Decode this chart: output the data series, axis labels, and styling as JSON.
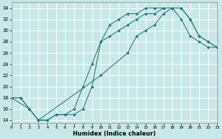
{
  "xlabel": "Humidex (Indice chaleur)",
  "bg_color": "#c8e8e8",
  "grid_color": "#ffffff",
  "line_color": "#2a7a7a",
  "xlim": [
    0,
    23
  ],
  "ylim": [
    13.5,
    35
  ],
  "xticks": [
    0,
    1,
    2,
    3,
    4,
    5,
    6,
    7,
    8,
    9,
    10,
    11,
    12,
    13,
    14,
    15,
    16,
    17,
    18,
    19,
    20,
    21,
    22,
    23
  ],
  "yticks": [
    14,
    16,
    18,
    20,
    22,
    24,
    26,
    28,
    30,
    32,
    34
  ],
  "series1_x": [
    0,
    1,
    2,
    3,
    4,
    5,
    6,
    7,
    8,
    9,
    10,
    11,
    12,
    13,
    14,
    15,
    16,
    17,
    18,
    19,
    20,
    21,
    22,
    23
  ],
  "series1_y": [
    18,
    18,
    16,
    14,
    14,
    15,
    15,
    15,
    16,
    20,
    28,
    31,
    32,
    33,
    33,
    34,
    34,
    34,
    34,
    32,
    29,
    28,
    27,
    27
  ],
  "series2_x": [
    0,
    1,
    2,
    3,
    4,
    5,
    6,
    7,
    8,
    9,
    10,
    11,
    12,
    13,
    14,
    15,
    16,
    17,
    18,
    19,
    20,
    21,
    22,
    23
  ],
  "series2_y": [
    18,
    18,
    16,
    14,
    14,
    15,
    15,
    16,
    20,
    24,
    28,
    29,
    30,
    31,
    32,
    33,
    33,
    34,
    34,
    34,
    32,
    29,
    28,
    27
  ],
  "series3_x": [
    0,
    2,
    3,
    10,
    13,
    14,
    15,
    16,
    17,
    18,
    19,
    20,
    21,
    22,
    23
  ],
  "series3_y": [
    18,
    16,
    14,
    22,
    26,
    29,
    30,
    31,
    33,
    34,
    34,
    32,
    29,
    28,
    27
  ],
  "markersize": 2.0,
  "linewidth": 0.8
}
